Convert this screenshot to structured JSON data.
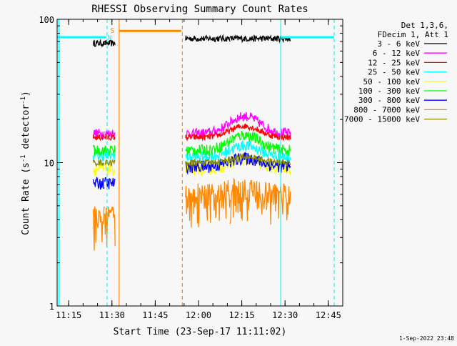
{
  "chart_data": {
    "type": "line",
    "title": "RHESSI Observing Summary Count Rates",
    "xlabel": "Start Time (23-Sep-17 11:11:02)",
    "ylabel_main": "Count Rate (s",
    "ylabel_sup1": "-1",
    "ylabel_mid": " detector",
    "ylabel_sup2": "-1",
    "ylabel_end": ")",
    "yscale": "log",
    "xlim_minutes": [
      671,
      770
    ],
    "ylim": [
      1,
      100
    ],
    "x_ticks": [
      {
        "value": 675,
        "label": "11:15"
      },
      {
        "value": 690,
        "label": "11:30"
      },
      {
        "value": 705,
        "label": "11:45"
      },
      {
        "value": 720,
        "label": "12:00"
      },
      {
        "value": 735,
        "label": "12:15"
      },
      {
        "value": 750,
        "label": "12:30"
      },
      {
        "value": 765,
        "label": "12:45"
      }
    ],
    "y_ticks": [
      {
        "value": 1,
        "label": "1"
      },
      {
        "value": 10,
        "label": "10"
      },
      {
        "value": 100,
        "label": "100"
      }
    ],
    "legend_header": [
      "Det 1,3,6,",
      "FDecim 1, Att 1"
    ],
    "series": [
      {
        "name": "3 - 6 keV",
        "color": "#000000",
        "level": 68,
        "day_scale": 1.08,
        "noise": 0.05,
        "flare": 0.0
      },
      {
        "name": "6 - 12 keV",
        "color": "#ff00ff",
        "level": 16,
        "day_scale": 1.0,
        "noise": 0.08,
        "flare": 0.32
      },
      {
        "name": "12 - 25 keV",
        "color": "#ff0000",
        "level": 15,
        "day_scale": 1.0,
        "noise": 0.05,
        "flare": 0.2
      },
      {
        "name": "25 - 50 keV",
        "color": "#00ffff",
        "level": 11.2,
        "day_scale": 0.98,
        "noise": 0.09,
        "flare": 0.2
      },
      {
        "name": "50 - 100 keV",
        "color": "#ffff00",
        "level": 9.0,
        "day_scale": 1.0,
        "noise": 0.1,
        "flare": 0.18
      },
      {
        "name": "100 - 300 keV",
        "color": "#00ff00",
        "level": 12.2,
        "day_scale": 1.0,
        "noise": 0.09,
        "flare": 0.28
      },
      {
        "name": "300 - 800 keV",
        "color": "#0000ff",
        "level": 7.2,
        "day_scale": 1.3,
        "noise": 0.1,
        "flare": 0.15
      },
      {
        "name": "800 - 7000 keV",
        "color": "#ff8800",
        "level": 4.2,
        "day_scale": 1.45,
        "noise": 0.18,
        "flare": 0.1
      },
      {
        "name": "7000 - 15000 keV",
        "color": "#888800",
        "level": 10.0,
        "day_scale": 1.0,
        "noise": 0.05,
        "flare": 0.1
      }
    ],
    "segments": [
      {
        "start": 683.5,
        "end": 687.3
      },
      {
        "start": 687.5,
        "end": 691.2
      },
      {
        "start": 715.5,
        "end": 731.0
      },
      {
        "start": 731.0,
        "end": 752.0
      }
    ],
    "markers": [
      {
        "type": "line",
        "x": 671.6,
        "color": "#00ffff",
        "style": "solid"
      },
      {
        "type": "line",
        "x": 688.3,
        "color": "#00ffff",
        "style": "dashed"
      },
      {
        "type": "line",
        "x": 692.5,
        "color": "#ff8800",
        "style": "solid"
      },
      {
        "type": "line",
        "x": 714.4,
        "color": "#ff8800",
        "style": "dashed"
      },
      {
        "type": "line",
        "x": 748.5,
        "color": "#00ffff",
        "style": "solid"
      },
      {
        "type": "line",
        "x": 767.0,
        "color": "#00ffff",
        "style": "dashed"
      }
    ],
    "bars": [
      {
        "x0": 671.0,
        "x1": 688.0,
        "y": 75,
        "color": "#00ffff"
      },
      {
        "x0": 692.5,
        "x1": 714.0,
        "y": 83,
        "color": "#ff8800"
      },
      {
        "x0": 748.5,
        "x1": 767.0,
        "y": 75,
        "color": "#00ffff"
      }
    ],
    "labels": [
      {
        "text": "S",
        "x": 690.2,
        "y": 84,
        "color": "#ff8800"
      },
      {
        "text": "N",
        "x": 689.2,
        "y": 75,
        "color": "#00ffff"
      }
    ],
    "timestamp": "1-Sep-2022 23:48"
  }
}
